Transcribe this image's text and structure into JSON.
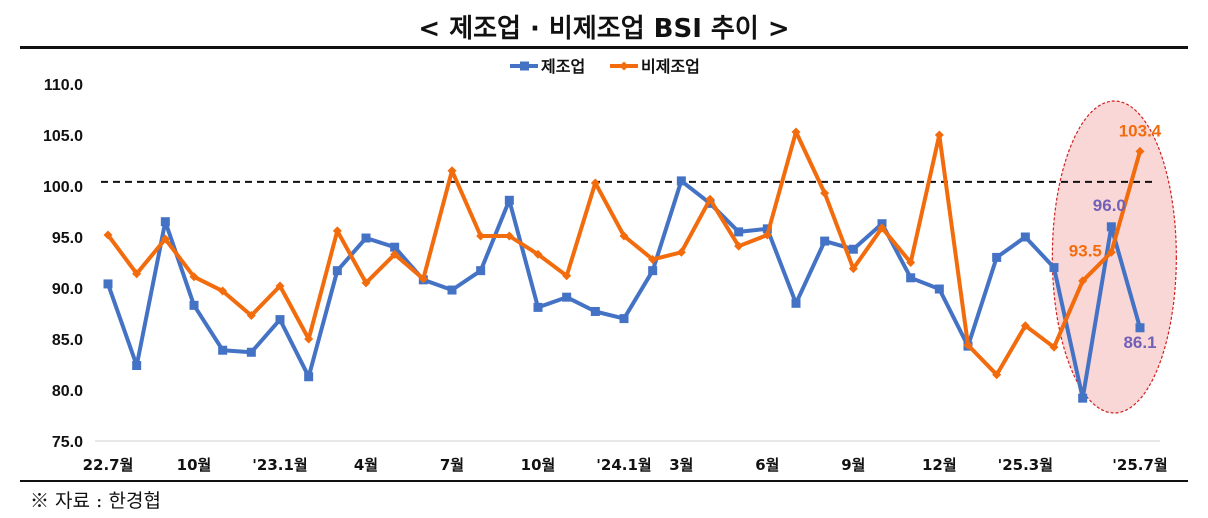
{
  "title": "< 제조업 · 비제조업 BSI 추이 >",
  "source": "※ 자료 : 한경협",
  "colors": {
    "manufacturing": "#4472C4",
    "non_manufacturing": "#F26C0D",
    "annotation": "#7060B8"
  },
  "chart_data": {
    "type": "line",
    "title": "",
    "xlabel": "",
    "ylabel": "",
    "ylim": [
      75,
      110
    ],
    "yticks": [
      "110.0",
      "105.0",
      "100.0",
      "95.0",
      "90.0",
      "85.0",
      "80.0",
      "75.0"
    ],
    "legend_position": "top-center",
    "grid": false,
    "reference_line": 100.4,
    "x": [
      "22.7",
      "22.8",
      "22.9",
      "22.10",
      "22.11",
      "22.12",
      "23.1",
      "23.2",
      "23.3",
      "23.4",
      "23.5",
      "23.6",
      "23.7",
      "23.8",
      "23.9",
      "23.10",
      "23.11",
      "23.12",
      "24.1",
      "24.2",
      "24.3",
      "24.4",
      "24.5",
      "24.6",
      "24.7",
      "24.8",
      "24.9",
      "24.10",
      "24.11",
      "24.12",
      "25.1",
      "25.2",
      "25.3",
      "25.4",
      "25.5",
      "25.6",
      "25.7"
    ],
    "tick_labels": [
      {
        "index": 0,
        "label": "22.7월"
      },
      {
        "index": 3,
        "label": "10월"
      },
      {
        "index": 6,
        "label": "'23.1월"
      },
      {
        "index": 9,
        "label": "4월"
      },
      {
        "index": 12,
        "label": "7월"
      },
      {
        "index": 15,
        "label": "10월"
      },
      {
        "index": 18,
        "label": "'24.1월"
      },
      {
        "index": 20,
        "label": "3월"
      },
      {
        "index": 23,
        "label": "6월"
      },
      {
        "index": 26,
        "label": "9월"
      },
      {
        "index": 29,
        "label": "12월"
      },
      {
        "index": 32,
        "label": "'25.3월"
      },
      {
        "index": 36,
        "label": "'25.7월"
      }
    ],
    "series": [
      {
        "name": "제조업",
        "values": [
          90.4,
          82.4,
          96.5,
          88.3,
          83.9,
          83.7,
          86.9,
          81.3,
          91.7,
          94.9,
          94.0,
          90.8,
          89.8,
          91.7,
          98.6,
          88.1,
          89.1,
          87.7,
          87.0,
          91.7,
          100.5,
          98.3,
          95.5,
          95.8,
          88.5,
          94.6,
          93.8,
          96.3,
          91.0,
          89.9,
          84.3,
          93.0,
          95.0,
          92.0,
          79.2,
          96.0,
          86.1
        ]
      },
      {
        "name": "비제조업",
        "values": [
          95.2,
          91.4,
          94.8,
          91.1,
          89.7,
          87.3,
          90.2,
          85.0,
          95.6,
          90.5,
          93.3,
          90.9,
          101.5,
          95.1,
          95.1,
          93.3,
          91.2,
          100.3,
          95.1,
          92.8,
          93.5,
          98.7,
          94.1,
          95.2,
          105.3,
          99.3,
          91.9,
          95.9,
          92.5,
          105.0,
          84.4,
          81.5,
          86.3,
          84.2,
          90.7,
          93.5,
          103.4
        ]
      }
    ],
    "annotations": [
      {
        "series": 1,
        "index": 36,
        "text": "103.4"
      },
      {
        "series": 1,
        "index": 35,
        "text": "93.5"
      },
      {
        "series": 0,
        "index": 35,
        "text": "96.0"
      },
      {
        "series": 0,
        "index": 36,
        "text": "86.1"
      }
    ],
    "highlight": "ellipse around the last three months"
  }
}
